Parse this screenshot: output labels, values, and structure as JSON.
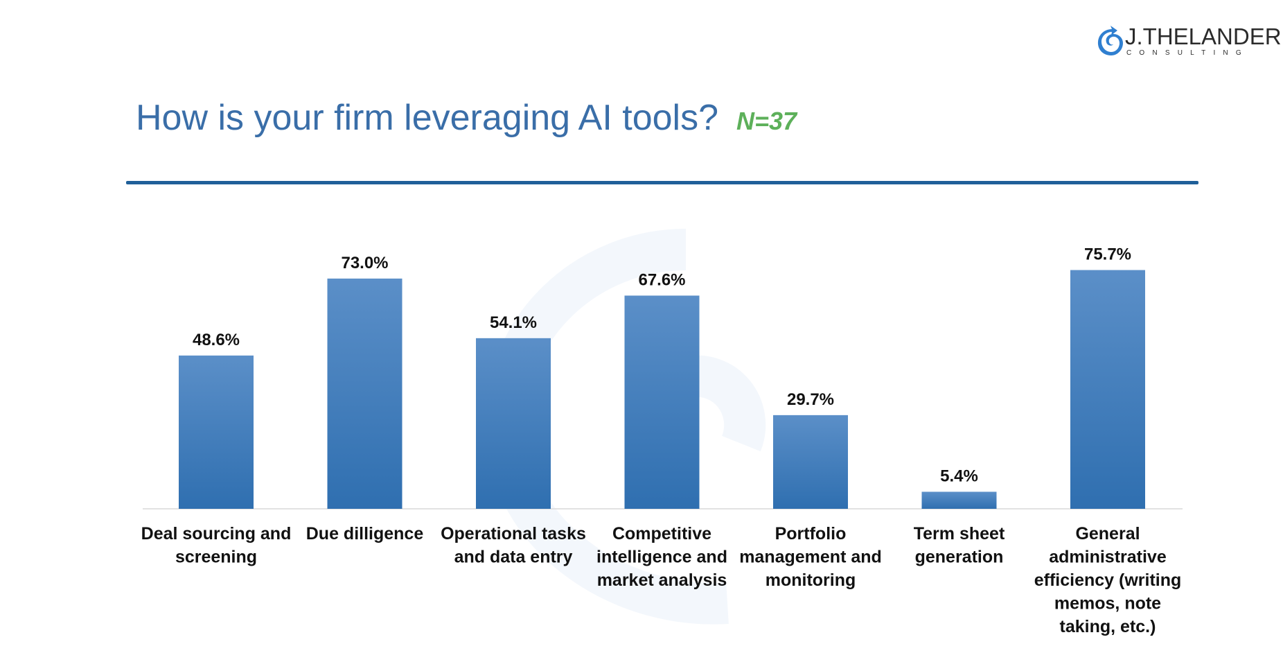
{
  "brand": {
    "name": "J.THELANDER",
    "sub": "CONSULTING",
    "logo_color": "#2f7fd0"
  },
  "header": {
    "title": "How is your firm leveraging AI tools?",
    "n_label": "N=37",
    "title_color": "#3a6ea8",
    "n_color": "#5db05a"
  },
  "chart_data": {
    "type": "bar",
    "title": "How is your firm leveraging AI tools?",
    "categories": [
      [
        "Deal sourcing and",
        "screening"
      ],
      [
        "Due dilligence"
      ],
      [
        "Operational tasks",
        "and data entry"
      ],
      [
        "Competitive",
        "intelligence and",
        "market analysis"
      ],
      [
        "Portfolio",
        "management and",
        "monitoring"
      ],
      [
        "Term sheet",
        "generation"
      ],
      [
        "General",
        "administrative",
        "efficiency (writing",
        "memos, note",
        "taking, etc.)"
      ]
    ],
    "values": [
      48.6,
      73.0,
      54.1,
      67.6,
      29.7,
      5.4,
      75.7
    ],
    "value_labels": [
      "48.6%",
      "73.0%",
      "54.1%",
      "67.6%",
      "29.7%",
      "5.4%",
      "75.7%"
    ],
    "unit": "%",
    "xlabel": "",
    "ylabel": "",
    "ylim": [
      0,
      100
    ],
    "grid": false,
    "bar_color_top": "#5b8fc8",
    "bar_color_bottom": "#2f6fb0"
  }
}
